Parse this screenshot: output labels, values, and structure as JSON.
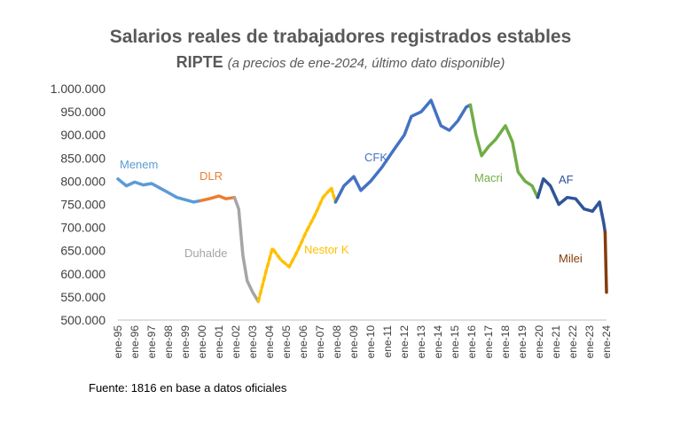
{
  "chart_data": {
    "type": "line",
    "title": "Salarios reales de trabajadores registrados estables",
    "subtitle_bold": "RIPTE",
    "subtitle_italic": "(a precios de ene-2024, último dato disponible)",
    "source": "Fuente: 1816 en base a datos oficiales",
    "ylim": [
      500000,
      1000000
    ],
    "y_ticks": [
      "1.000.000",
      "950.000",
      "900.000",
      "850.000",
      "800.000",
      "750.000",
      "700.000",
      "650.000",
      "600.000",
      "550.000",
      "500.000"
    ],
    "y_tick_values": [
      1000000,
      950000,
      900000,
      850000,
      800000,
      750000,
      700000,
      650000,
      600000,
      550000,
      500000
    ],
    "x_ticks": [
      "ene-95",
      "ene-96",
      "ene-97",
      "ene-98",
      "ene-99",
      "ene-00",
      "ene-01",
      "ene-02",
      "ene-03",
      "ene-04",
      "ene-05",
      "ene-06",
      "ene-07",
      "ene-08",
      "ene-09",
      "ene-10",
      "ene-11",
      "ene-12",
      "ene-13",
      "ene-14",
      "ene-15",
      "ene-16",
      "ene-17",
      "ene-18",
      "ene-19",
      "ene-20",
      "ene-21",
      "ene-22",
      "ene-23",
      "ene-24"
    ],
    "x_range": [
      "1995-01",
      "2024-01"
    ],
    "grid": false,
    "series": [
      {
        "name": "Menem",
        "color": "#5b9bd5",
        "dashed": false,
        "points": [
          [
            "1995-01",
            805000
          ],
          [
            "1995-07",
            790000
          ],
          [
            "1996-01",
            798000
          ],
          [
            "1996-07",
            792000
          ],
          [
            "1997-01",
            795000
          ],
          [
            "1997-07",
            785000
          ],
          [
            "1998-01",
            775000
          ],
          [
            "1998-07",
            765000
          ],
          [
            "1999-01",
            760000
          ],
          [
            "1999-07",
            755000
          ],
          [
            "1999-12",
            758000
          ]
        ]
      },
      {
        "name": "DLR",
        "color": "#ed7d31",
        "dashed": false,
        "points": [
          [
            "1999-12",
            758000
          ],
          [
            "2000-06",
            762000
          ],
          [
            "2001-01",
            768000
          ],
          [
            "2001-06",
            762000
          ],
          [
            "2001-12",
            765000
          ]
        ]
      },
      {
        "name": "Duhalde",
        "color": "#a5a5a5",
        "dashed": false,
        "points": [
          [
            "2001-12",
            765000
          ],
          [
            "2002-03",
            740000
          ],
          [
            "2002-06",
            640000
          ],
          [
            "2002-09",
            585000
          ],
          [
            "2003-01",
            560000
          ],
          [
            "2003-05",
            540000
          ]
        ]
      },
      {
        "name": "Nestor K",
        "color": "#ffc000",
        "dashed": true,
        "points": [
          [
            "2003-05",
            540000
          ],
          [
            "2003-10",
            600000
          ],
          [
            "2004-03",
            655000
          ],
          [
            "2004-09",
            630000
          ],
          [
            "2005-03",
            615000
          ],
          [
            "2005-09",
            650000
          ],
          [
            "2006-03",
            690000
          ],
          [
            "2006-09",
            725000
          ],
          [
            "2007-03",
            765000
          ],
          [
            "2007-09",
            785000
          ],
          [
            "2007-12",
            755000
          ]
        ]
      },
      {
        "name": "CFK",
        "color": "#4472c4",
        "dashed": false,
        "points": [
          [
            "2007-12",
            755000
          ],
          [
            "2008-06",
            790000
          ],
          [
            "2009-01",
            810000
          ],
          [
            "2009-06",
            780000
          ],
          [
            "2010-01",
            800000
          ],
          [
            "2010-09",
            830000
          ],
          [
            "2011-06",
            870000
          ],
          [
            "2012-01",
            900000
          ],
          [
            "2012-06",
            940000
          ],
          [
            "2013-01",
            950000
          ],
          [
            "2013-08",
            975000
          ],
          [
            "2014-03",
            920000
          ],
          [
            "2014-09",
            910000
          ],
          [
            "2015-03",
            930000
          ],
          [
            "2015-09",
            960000
          ],
          [
            "2015-12",
            965000
          ]
        ]
      },
      {
        "name": "Macri",
        "color": "#70ad47",
        "dashed": false,
        "points": [
          [
            "2015-12",
            965000
          ],
          [
            "2016-04",
            900000
          ],
          [
            "2016-08",
            855000
          ],
          [
            "2017-01",
            875000
          ],
          [
            "2017-06",
            890000
          ],
          [
            "2018-01",
            920000
          ],
          [
            "2018-06",
            885000
          ],
          [
            "2018-10",
            820000
          ],
          [
            "2019-03",
            800000
          ],
          [
            "2019-08",
            790000
          ],
          [
            "2019-12",
            765000
          ]
        ]
      },
      {
        "name": "AF",
        "color": "#2f5597",
        "dashed": false,
        "points": [
          [
            "2019-12",
            765000
          ],
          [
            "2020-04",
            805000
          ],
          [
            "2020-09",
            790000
          ],
          [
            "2021-03",
            750000
          ],
          [
            "2021-09",
            765000
          ],
          [
            "2022-03",
            762000
          ],
          [
            "2022-09",
            740000
          ],
          [
            "2023-03",
            735000
          ],
          [
            "2023-08",
            755000
          ],
          [
            "2023-11",
            710000
          ],
          [
            "2023-12",
            690000
          ]
        ]
      },
      {
        "name": "Milei",
        "color": "#843c0c",
        "dashed": false,
        "points": [
          [
            "2023-12",
            690000
          ],
          [
            "2024-01",
            560000
          ]
        ]
      }
    ]
  }
}
